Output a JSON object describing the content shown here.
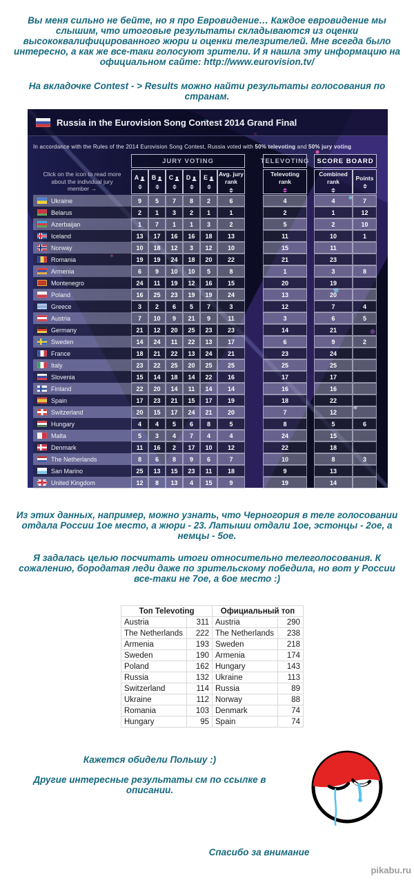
{
  "intro": {
    "p1": "Вы меня сильно не бейте, но я про Евровидение…  Каждое евровидение мы слышим, что итоговые результаты складываются из оценки высококвалифицированного жюри и оценки телезрителей. Мне всегда было интересно, а как же все-таки голосуют зрители. И я нашла эту информацию на официальном сайте: http://www.eurovision.tv/",
    "p2": "На вкладочке Contest - > Results можно найти результаты голосования по странам."
  },
  "eurovision_table": {
    "title": "Russia in the Eurovision Song Contest 2014 Grand Final",
    "note_prefix": "In accordance with the Rules of the 2014 Eurovision Song Contest, Russia voted with ",
    "note_bold1": "50% televoting",
    "note_and": " and ",
    "note_bold2": "50% jury voting",
    "left_header": "Click on the icon to read more about the individual jury member →",
    "group_jury": "JURY VOTING",
    "group_tele": "TELEVOTING",
    "group_score": "SCORE BOARD",
    "jurors": [
      "A",
      "B",
      "C",
      "D",
      "E"
    ],
    "col_avg": "Avg. jury rank",
    "col_tele": "Televoting rank",
    "col_combined": "Combined rank",
    "col_points": "Points",
    "rows": [
      {
        "country": "Ukraine",
        "flag": "ua",
        "jury": [
          9,
          5,
          7,
          8,
          2
        ],
        "avg": 6,
        "tele": 4,
        "combined": 4,
        "points": "7"
      },
      {
        "country": "Belarus",
        "flag": "by",
        "jury": [
          2,
          1,
          3,
          2,
          1
        ],
        "avg": 1,
        "tele": 2,
        "combined": 1,
        "points": "12"
      },
      {
        "country": "Azerbaijan",
        "flag": "az",
        "jury": [
          1,
          7,
          1,
          1,
          3
        ],
        "avg": 2,
        "tele": 5,
        "combined": 2,
        "points": "10"
      },
      {
        "country": "Iceland",
        "flag": "is",
        "jury": [
          13,
          17,
          16,
          16,
          18
        ],
        "avg": 13,
        "tele": 11,
        "combined": 10,
        "points": "1"
      },
      {
        "country": "Norway",
        "flag": "no",
        "jury": [
          10,
          18,
          12,
          3,
          12
        ],
        "avg": 10,
        "tele": 15,
        "combined": 11,
        "points": ""
      },
      {
        "country": "Romania",
        "flag": "ro",
        "jury": [
          19,
          19,
          24,
          18,
          20
        ],
        "avg": 22,
        "tele": 21,
        "combined": 23,
        "points": ""
      },
      {
        "country": "Armenia",
        "flag": "am",
        "jury": [
          6,
          9,
          10,
          10,
          5
        ],
        "avg": 8,
        "tele": 1,
        "combined": 3,
        "points": "8"
      },
      {
        "country": "Montenegro",
        "flag": "me",
        "jury": [
          24,
          11,
          19,
          12,
          16
        ],
        "avg": 15,
        "tele": 20,
        "combined": 19,
        "points": ""
      },
      {
        "country": "Poland",
        "flag": "pl",
        "jury": [
          16,
          25,
          23,
          19,
          19
        ],
        "avg": 24,
        "tele": 13,
        "combined": 20,
        "points": ""
      },
      {
        "country": "Greece",
        "flag": "gr",
        "jury": [
          3,
          2,
          6,
          5,
          7
        ],
        "avg": 3,
        "tele": 12,
        "combined": 7,
        "points": "4"
      },
      {
        "country": "Austria",
        "flag": "at",
        "jury": [
          7,
          10,
          9,
          21,
          9
        ],
        "avg": 11,
        "tele": 3,
        "combined": 6,
        "points": "5"
      },
      {
        "country": "Germany",
        "flag": "de",
        "jury": [
          21,
          12,
          20,
          25,
          23
        ],
        "avg": 23,
        "tele": 14,
        "combined": 21,
        "points": ""
      },
      {
        "country": "Sweden",
        "flag": "se",
        "jury": [
          14,
          24,
          11,
          22,
          13
        ],
        "avg": 17,
        "tele": 6,
        "combined": 9,
        "points": "2"
      },
      {
        "country": "France",
        "flag": "fr",
        "jury": [
          18,
          21,
          22,
          13,
          24
        ],
        "avg": 21,
        "tele": 23,
        "combined": 24,
        "points": ""
      },
      {
        "country": "Italy",
        "flag": "it",
        "jury": [
          23,
          22,
          25,
          20,
          25
        ],
        "avg": 25,
        "tele": 25,
        "combined": 25,
        "points": ""
      },
      {
        "country": "Slovenia",
        "flag": "si",
        "jury": [
          15,
          14,
          18,
          14,
          22
        ],
        "avg": 16,
        "tele": 17,
        "combined": 17,
        "points": ""
      },
      {
        "country": "Finland",
        "flag": "fi",
        "jury": [
          22,
          20,
          14,
          11,
          14
        ],
        "avg": 14,
        "tele": 16,
        "combined": 16,
        "points": ""
      },
      {
        "country": "Spain",
        "flag": "es",
        "jury": [
          17,
          23,
          21,
          15,
          17
        ],
        "avg": 19,
        "tele": 18,
        "combined": 22,
        "points": ""
      },
      {
        "country": "Switzerland",
        "flag": "ch",
        "jury": [
          20,
          15,
          17,
          24,
          21
        ],
        "avg": 20,
        "tele": 7,
        "combined": 12,
        "points": ""
      },
      {
        "country": "Hungary",
        "flag": "hu",
        "jury": [
          4,
          4,
          5,
          6,
          8
        ],
        "avg": 5,
        "tele": 8,
        "combined": 5,
        "points": "6"
      },
      {
        "country": "Malta",
        "flag": "mt",
        "jury": [
          5,
          3,
          4,
          7,
          4
        ],
        "avg": 4,
        "tele": 24,
        "combined": 15,
        "points": ""
      },
      {
        "country": "Denmark",
        "flag": "dk",
        "jury": [
          11,
          16,
          2,
          17,
          10
        ],
        "avg": 12,
        "tele": 22,
        "combined": 18,
        "points": ""
      },
      {
        "country": "The Netherlands",
        "flag": "nl",
        "jury": [
          8,
          6,
          8,
          9,
          6
        ],
        "avg": 7,
        "tele": 10,
        "combined": 8,
        "points": "3"
      },
      {
        "country": "San Marino",
        "flag": "sm",
        "jury": [
          25,
          13,
          15,
          23,
          11
        ],
        "avg": 18,
        "tele": 9,
        "combined": 13,
        "points": ""
      },
      {
        "country": "United Kingdom",
        "flag": "gb",
        "jury": [
          12,
          8,
          13,
          4,
          15
        ],
        "avg": 9,
        "tele": 19,
        "combined": 14,
        "points": ""
      }
    ]
  },
  "mid": {
    "p1": "Из этих данных, например, можно узнать, что Черногория в теле голосовании отдала России 1ое место, а жюри - 23. Латыши отдали 1ое, эстонцы - 2ое, а немцы - 5ое.",
    "p2": "Я задалась целью посчитать итоги относительно телеголосования. К сожалению, бородатая леди даже по зрительскому победила, но вот у России все-таки не 7ое, а 6ое место :)"
  },
  "comparison_table": {
    "header_left": "Топ Televoting",
    "header_right": "Официальный топ",
    "televoting": [
      {
        "country": "Austria",
        "score": 311
      },
      {
        "country": "The Netherlands",
        "score": 222
      },
      {
        "country": "Armenia",
        "score": 193
      },
      {
        "country": "Sweden",
        "score": 190
      },
      {
        "country": "Poland",
        "score": 162
      },
      {
        "country": "Russia",
        "score": 132
      },
      {
        "country": "Switzerland",
        "score": 114
      },
      {
        "country": "Ukraine",
        "score": 112
      },
      {
        "country": "Romania",
        "score": 103
      },
      {
        "country": "Hungary",
        "score": 95
      }
    ],
    "official": [
      {
        "country": "Austria",
        "score": 290
      },
      {
        "country": "The Netherlands",
        "score": 238
      },
      {
        "country": "Sweden",
        "score": 218
      },
      {
        "country": "Armenia",
        "score": 174
      },
      {
        "country": "Hungary",
        "score": 143
      },
      {
        "country": "Ukraine",
        "score": 113
      },
      {
        "country": "Russia",
        "score": 89
      },
      {
        "country": "Norway",
        "score": 88
      },
      {
        "country": "Denmark",
        "score": 74
      },
      {
        "country": "Spain",
        "score": 74
      }
    ]
  },
  "outro": {
    "p1": "Кажется обидели Польшу :)",
    "p2": "Другие интересные результаты см по ссылке в описании.",
    "thanks": "Спасибо за внимание"
  },
  "watermark": "pikabu.ru",
  "colors": {
    "accent_text": "#16697e",
    "table_background": "#0f0f2d",
    "sort_highlight": "#d556c8"
  }
}
